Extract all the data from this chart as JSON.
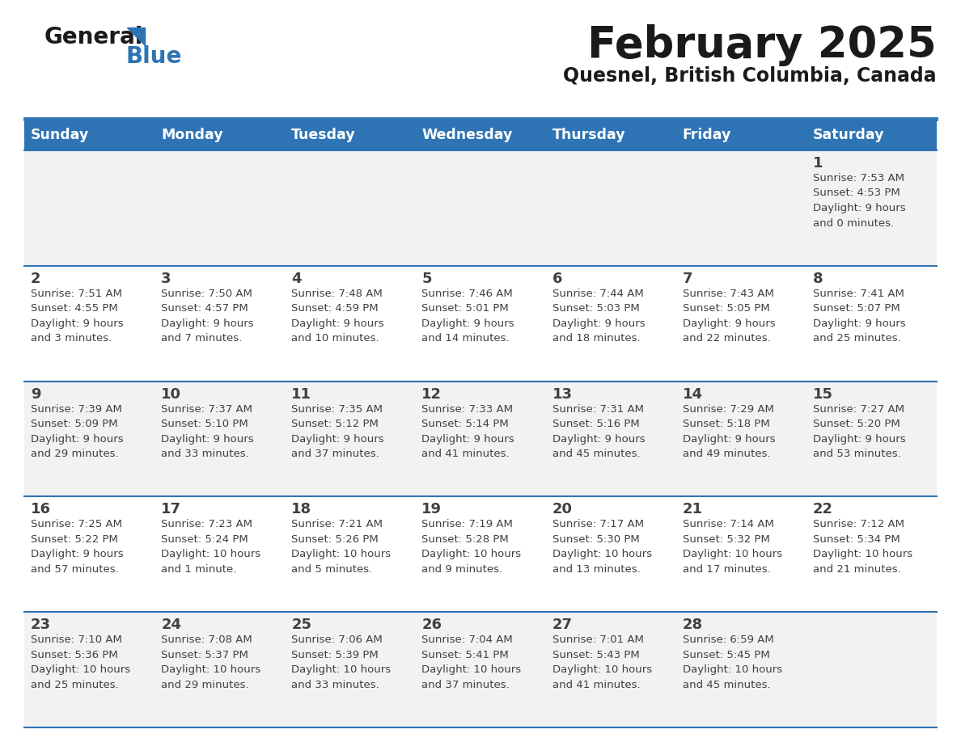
{
  "title": "February 2025",
  "subtitle": "Quesnel, British Columbia, Canada",
  "header_bg": "#2E74B5",
  "header_text_color": "#FFFFFF",
  "row_bg": [
    "#F2F2F2",
    "#FFFFFF",
    "#F2F2F2",
    "#FFFFFF",
    "#F2F2F2"
  ],
  "border_color": "#2E74B5",
  "text_color": "#404040",
  "days_of_week": [
    "Sunday",
    "Monday",
    "Tuesday",
    "Wednesday",
    "Thursday",
    "Friday",
    "Saturday"
  ],
  "weeks": [
    [
      {
        "day": null,
        "info": null
      },
      {
        "day": null,
        "info": null
      },
      {
        "day": null,
        "info": null
      },
      {
        "day": null,
        "info": null
      },
      {
        "day": null,
        "info": null
      },
      {
        "day": null,
        "info": null
      },
      {
        "day": 1,
        "info": "Sunrise: 7:53 AM\nSunset: 4:53 PM\nDaylight: 9 hours\nand 0 minutes."
      }
    ],
    [
      {
        "day": 2,
        "info": "Sunrise: 7:51 AM\nSunset: 4:55 PM\nDaylight: 9 hours\nand 3 minutes."
      },
      {
        "day": 3,
        "info": "Sunrise: 7:50 AM\nSunset: 4:57 PM\nDaylight: 9 hours\nand 7 minutes."
      },
      {
        "day": 4,
        "info": "Sunrise: 7:48 AM\nSunset: 4:59 PM\nDaylight: 9 hours\nand 10 minutes."
      },
      {
        "day": 5,
        "info": "Sunrise: 7:46 AM\nSunset: 5:01 PM\nDaylight: 9 hours\nand 14 minutes."
      },
      {
        "day": 6,
        "info": "Sunrise: 7:44 AM\nSunset: 5:03 PM\nDaylight: 9 hours\nand 18 minutes."
      },
      {
        "day": 7,
        "info": "Sunrise: 7:43 AM\nSunset: 5:05 PM\nDaylight: 9 hours\nand 22 minutes."
      },
      {
        "day": 8,
        "info": "Sunrise: 7:41 AM\nSunset: 5:07 PM\nDaylight: 9 hours\nand 25 minutes."
      }
    ],
    [
      {
        "day": 9,
        "info": "Sunrise: 7:39 AM\nSunset: 5:09 PM\nDaylight: 9 hours\nand 29 minutes."
      },
      {
        "day": 10,
        "info": "Sunrise: 7:37 AM\nSunset: 5:10 PM\nDaylight: 9 hours\nand 33 minutes."
      },
      {
        "day": 11,
        "info": "Sunrise: 7:35 AM\nSunset: 5:12 PM\nDaylight: 9 hours\nand 37 minutes."
      },
      {
        "day": 12,
        "info": "Sunrise: 7:33 AM\nSunset: 5:14 PM\nDaylight: 9 hours\nand 41 minutes."
      },
      {
        "day": 13,
        "info": "Sunrise: 7:31 AM\nSunset: 5:16 PM\nDaylight: 9 hours\nand 45 minutes."
      },
      {
        "day": 14,
        "info": "Sunrise: 7:29 AM\nSunset: 5:18 PM\nDaylight: 9 hours\nand 49 minutes."
      },
      {
        "day": 15,
        "info": "Sunrise: 7:27 AM\nSunset: 5:20 PM\nDaylight: 9 hours\nand 53 minutes."
      }
    ],
    [
      {
        "day": 16,
        "info": "Sunrise: 7:25 AM\nSunset: 5:22 PM\nDaylight: 9 hours\nand 57 minutes."
      },
      {
        "day": 17,
        "info": "Sunrise: 7:23 AM\nSunset: 5:24 PM\nDaylight: 10 hours\nand 1 minute."
      },
      {
        "day": 18,
        "info": "Sunrise: 7:21 AM\nSunset: 5:26 PM\nDaylight: 10 hours\nand 5 minutes."
      },
      {
        "day": 19,
        "info": "Sunrise: 7:19 AM\nSunset: 5:28 PM\nDaylight: 10 hours\nand 9 minutes."
      },
      {
        "day": 20,
        "info": "Sunrise: 7:17 AM\nSunset: 5:30 PM\nDaylight: 10 hours\nand 13 minutes."
      },
      {
        "day": 21,
        "info": "Sunrise: 7:14 AM\nSunset: 5:32 PM\nDaylight: 10 hours\nand 17 minutes."
      },
      {
        "day": 22,
        "info": "Sunrise: 7:12 AM\nSunset: 5:34 PM\nDaylight: 10 hours\nand 21 minutes."
      }
    ],
    [
      {
        "day": 23,
        "info": "Sunrise: 7:10 AM\nSunset: 5:36 PM\nDaylight: 10 hours\nand 25 minutes."
      },
      {
        "day": 24,
        "info": "Sunrise: 7:08 AM\nSunset: 5:37 PM\nDaylight: 10 hours\nand 29 minutes."
      },
      {
        "day": 25,
        "info": "Sunrise: 7:06 AM\nSunset: 5:39 PM\nDaylight: 10 hours\nand 33 minutes."
      },
      {
        "day": 26,
        "info": "Sunrise: 7:04 AM\nSunset: 5:41 PM\nDaylight: 10 hours\nand 37 minutes."
      },
      {
        "day": 27,
        "info": "Sunrise: 7:01 AM\nSunset: 5:43 PM\nDaylight: 10 hours\nand 41 minutes."
      },
      {
        "day": 28,
        "info": "Sunrise: 6:59 AM\nSunset: 5:45 PM\nDaylight: 10 hours\nand 45 minutes."
      },
      {
        "day": null,
        "info": null
      }
    ]
  ],
  "fig_width": 11.88,
  "fig_height": 9.18,
  "dpi": 100
}
